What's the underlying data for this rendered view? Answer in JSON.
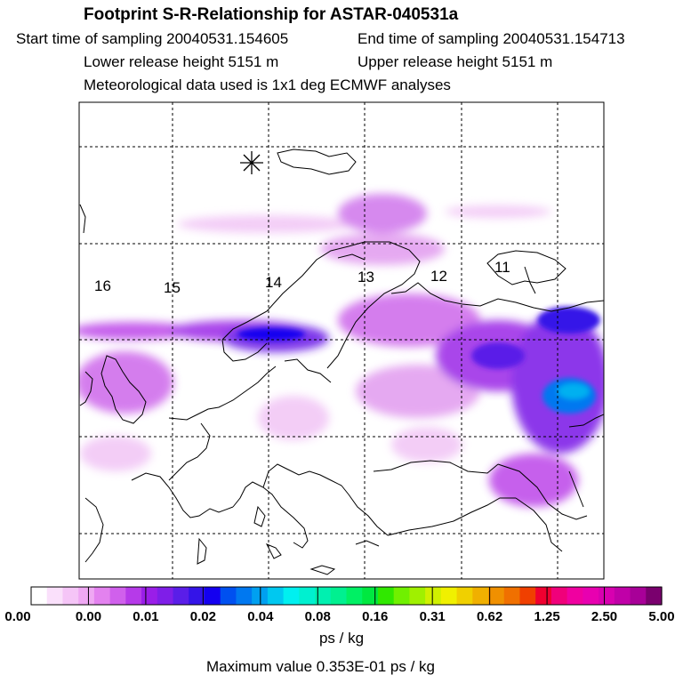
{
  "header": {
    "title": "Footprint S-R-Relationship for ASTAR-040531a",
    "start_time": "Start time of sampling 20040531.154605",
    "end_time": "End time of sampling 20040531.154713",
    "lower_height": "Lower release height 5151 m",
    "upper_height": "Upper release height 5151 m",
    "meteo": "Meteorological data used is 1x1 deg ECMWF analyses"
  },
  "map": {
    "track_labels": [
      "16",
      "15",
      "14",
      "13",
      "12",
      "11"
    ],
    "receptor_marker": "star-marker"
  },
  "colorbar": {
    "labels": [
      "0.00",
      "0.00",
      "0.01",
      "0.02",
      "0.04",
      "0.08",
      "0.16",
      "0.31",
      "0.62",
      "1.25",
      "2.50",
      "5.00"
    ],
    "colors": [
      "#ffffff",
      "#fae0fb",
      "#f5c5f7",
      "#efa8f3",
      "#e382ef",
      "#d060ec",
      "#b63ae9",
      "#9a1ee8",
      "#7f1ee8",
      "#5a1ee8",
      "#3414e8",
      "#1400f0",
      "#0050f0",
      "#0078f0",
      "#00a0f0",
      "#00c8f0",
      "#00f0f0",
      "#00f0d0",
      "#00f0b0",
      "#00f090",
      "#00f064",
      "#00e840",
      "#30e800",
      "#70f000",
      "#a0f000",
      "#d0f000",
      "#f0f000",
      "#f0d000",
      "#f0b000",
      "#f09000",
      "#f07000",
      "#f04000",
      "#f00030",
      "#f0007a",
      "#f000a0",
      "#e800b0",
      "#d800b0",
      "#c000a8",
      "#a80098",
      "#7a006e"
    ],
    "units": "ps / kg",
    "max_value": "Maximum value  0.353E-01 ps / kg"
  }
}
